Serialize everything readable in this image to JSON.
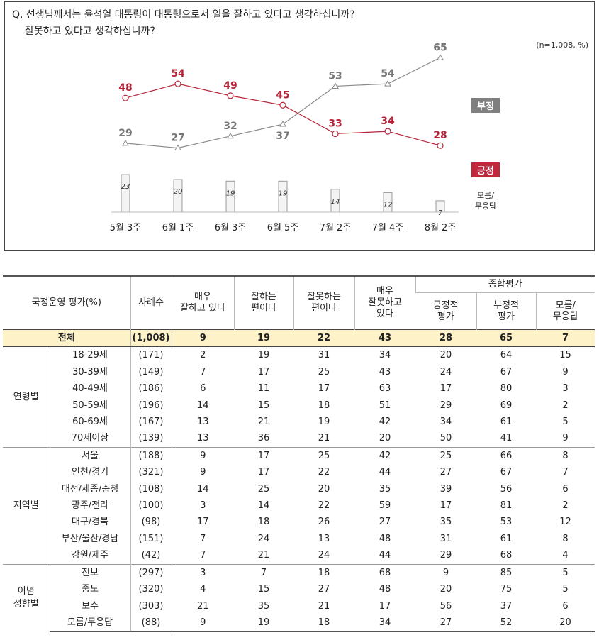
{
  "question": {
    "line1": "Q. 선생님께서는 윤석열 대통령이 대통령으로서 일을 잘하고 있다고 생각하십니까?",
    "line2": "잘못하고 있다고 생각하십니까?",
    "note": "(n=1,008,  %)"
  },
  "chart_data": {
    "type": "line",
    "categories": [
      "5월 3주",
      "6월 1주",
      "6월 3주",
      "6월 5주",
      "7월 2주",
      "7월 4주",
      "8월 2주"
    ],
    "series": [
      {
        "name": "부정",
        "values": [
          29,
          27,
          32,
          37,
          53,
          54,
          65
        ],
        "color": "#8a8a8a"
      },
      {
        "name": "긍정",
        "values": [
          48,
          54,
          49,
          45,
          33,
          34,
          28
        ],
        "color": "#b5253a"
      },
      {
        "name": "모름/\n무응답",
        "values": [
          23,
          20,
          19,
          19,
          14,
          12,
          7
        ],
        "kind": "bar",
        "color": "#f2f2f2"
      }
    ],
    "legend_labels": {
      "neg": "부정",
      "pos": "긍정",
      "dk1": "모름/",
      "dk2": "무응답"
    }
  },
  "table": {
    "headers": {
      "title": "국정운영 평가(%)",
      "count": "사례수",
      "c1": [
        "매우",
        "잘하고 있다"
      ],
      "c2": [
        "잘하는",
        "편이다"
      ],
      "c3": [
        "잘못하는",
        "편이다"
      ],
      "c4": [
        "매우",
        "잘못하고",
        "있다"
      ],
      "summary": "종합평가",
      "s1": [
        "긍정적",
        "평가"
      ],
      "s2": [
        "부정적",
        "평가"
      ],
      "s3": [
        "모름/",
        "무응답"
      ]
    },
    "total": {
      "label": "전체",
      "n": "(1,008)",
      "v": [
        "9",
        "19",
        "22",
        "43",
        "28",
        "65",
        "7"
      ]
    },
    "groups": [
      {
        "name": [
          "연령별"
        ],
        "rows": [
          {
            "label": "18-29세",
            "n": "(171)",
            "v": [
              "2",
              "19",
              "31",
              "34",
              "20",
              "64",
              "15"
            ]
          },
          {
            "label": "30-39세",
            "n": "(149)",
            "v": [
              "7",
              "17",
              "25",
              "43",
              "24",
              "67",
              "9"
            ]
          },
          {
            "label": "40-49세",
            "n": "(186)",
            "v": [
              "6",
              "11",
              "17",
              "63",
              "17",
              "80",
              "3"
            ]
          },
          {
            "label": "50-59세",
            "n": "(196)",
            "v": [
              "14",
              "15",
              "18",
              "51",
              "29",
              "69",
              "2"
            ]
          },
          {
            "label": "60-69세",
            "n": "(167)",
            "v": [
              "13",
              "21",
              "19",
              "42",
              "34",
              "61",
              "5"
            ]
          },
          {
            "label": "70세이상",
            "n": "(139)",
            "v": [
              "13",
              "36",
              "21",
              "20",
              "50",
              "41",
              "9"
            ]
          }
        ]
      },
      {
        "name": [
          "지역별"
        ],
        "rows": [
          {
            "label": "서울",
            "n": "(188)",
            "v": [
              "9",
              "17",
              "25",
              "42",
              "25",
              "66",
              "8"
            ]
          },
          {
            "label": "인천/경기",
            "n": "(321)",
            "v": [
              "9",
              "17",
              "22",
              "44",
              "27",
              "67",
              "7"
            ]
          },
          {
            "label": "대전/세종/충청",
            "n": "(108)",
            "v": [
              "14",
              "25",
              "20",
              "35",
              "39",
              "56",
              "6"
            ]
          },
          {
            "label": "광주/전라",
            "n": "(100)",
            "v": [
              "3",
              "14",
              "22",
              "59",
              "17",
              "81",
              "2"
            ]
          },
          {
            "label": "대구/경북",
            "n": "(98)",
            "v": [
              "17",
              "18",
              "26",
              "27",
              "35",
              "53",
              "12"
            ]
          },
          {
            "label": "부산/울산/경남",
            "n": "(151)",
            "v": [
              "7",
              "24",
              "13",
              "48",
              "31",
              "61",
              "8"
            ]
          },
          {
            "label": "강원/제주",
            "n": "(42)",
            "v": [
              "7",
              "21",
              "24",
              "44",
              "29",
              "68",
              "4"
            ]
          }
        ]
      },
      {
        "name": [
          "이념",
          "성향별"
        ],
        "rows": [
          {
            "label": "진보",
            "n": "(297)",
            "v": [
              "3",
              "7",
              "18",
              "68",
              "9",
              "85",
              "5"
            ]
          },
          {
            "label": "중도",
            "n": "(320)",
            "v": [
              "4",
              "15",
              "27",
              "48",
              "20",
              "75",
              "5"
            ]
          },
          {
            "label": "보수",
            "n": "(303)",
            "v": [
              "21",
              "35",
              "21",
              "17",
              "56",
              "37",
              "6"
            ]
          },
          {
            "label": "모름/무응답",
            "n": "(88)",
            "v": [
              "9",
              "19",
              "18",
              "34",
              "27",
              "52",
              "20"
            ]
          }
        ]
      }
    ]
  }
}
